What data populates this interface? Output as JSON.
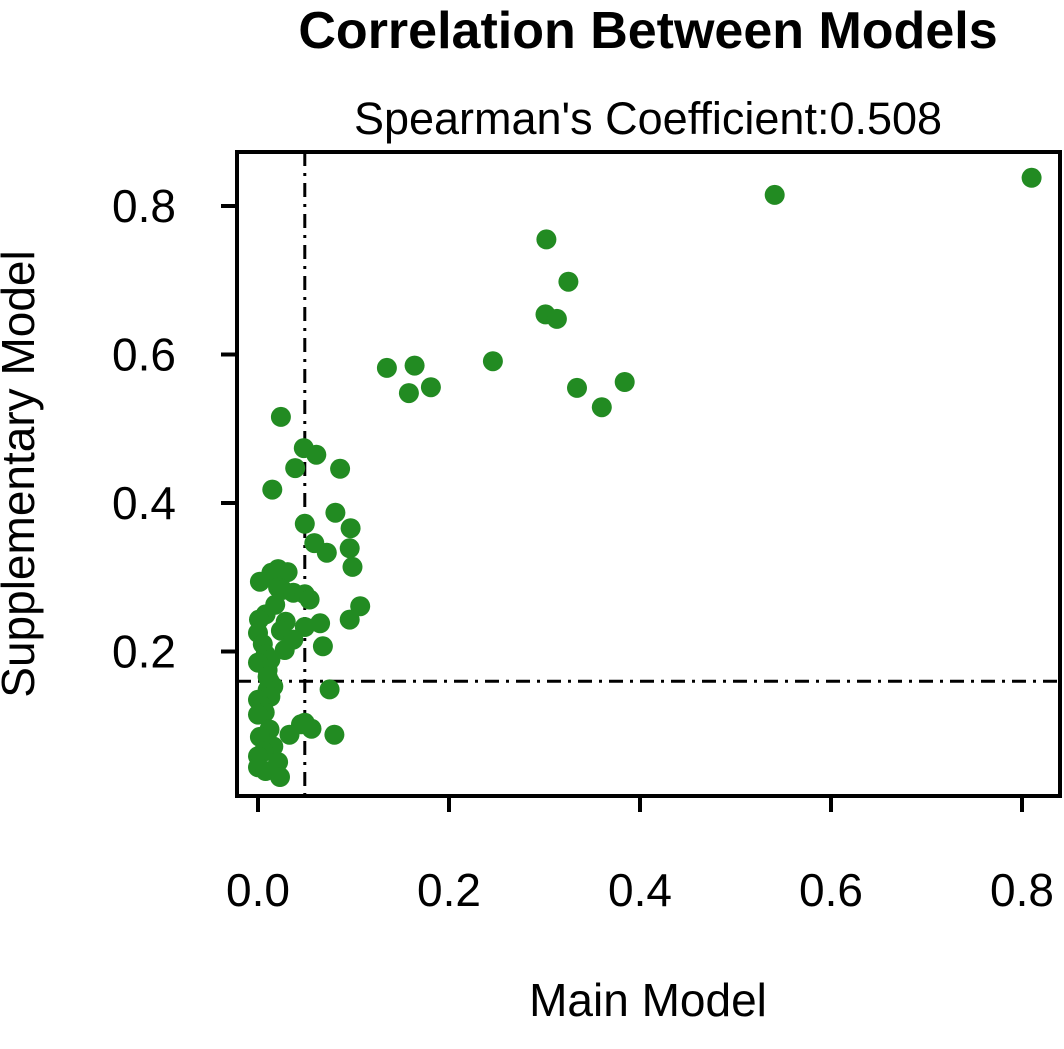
{
  "chart_data": {
    "type": "scatter",
    "title": "Correlation Between Models",
    "subtitle": "Spearman's Coefficient:0.508",
    "xlabel": "Main Model",
    "ylabel": "Supplementary Model",
    "x_ticks": [
      0.0,
      0.2,
      0.4,
      0.6,
      0.8
    ],
    "y_ticks": [
      0.2,
      0.4,
      0.6,
      0.8
    ],
    "xlim": [
      -0.023,
      0.84
    ],
    "ylim": [
      0.003,
      0.873
    ],
    "grid": false,
    "legend": "none",
    "point_color": "#228B22",
    "axis_color": "#000000",
    "reference_lines": {
      "vertical_x": 0.049,
      "horizontal_y": 0.16,
      "style": "dash-dot",
      "color": "#000000"
    },
    "points": [
      [
        0.81,
        0.838
      ],
      [
        0.541,
        0.815
      ],
      [
        0.302,
        0.755
      ],
      [
        0.325,
        0.698
      ],
      [
        0.301,
        0.654
      ],
      [
        0.313,
        0.648
      ],
      [
        0.246,
        0.591
      ],
      [
        0.164,
        0.585
      ],
      [
        0.135,
        0.582
      ],
      [
        0.181,
        0.556
      ],
      [
        0.158,
        0.548
      ],
      [
        0.334,
        0.555
      ],
      [
        0.384,
        0.563
      ],
      [
        0.36,
        0.529
      ],
      [
        0.024,
        0.516
      ],
      [
        0.048,
        0.474
      ],
      [
        0.061,
        0.465
      ],
      [
        0.039,
        0.447
      ],
      [
        0.086,
        0.446
      ],
      [
        0.015,
        0.418
      ],
      [
        0.081,
        0.387
      ],
      [
        0.049,
        0.372
      ],
      [
        0.097,
        0.366
      ],
      [
        0.059,
        0.346
      ],
      [
        0.072,
        0.333
      ],
      [
        0.096,
        0.339
      ],
      [
        0.099,
        0.314
      ],
      [
        0.021,
        0.311
      ],
      [
        0.031,
        0.307
      ],
      [
        0.014,
        0.306
      ],
      [
        0.002,
        0.294
      ],
      [
        0.021,
        0.286
      ],
      [
        0.026,
        0.283
      ],
      [
        0.037,
        0.279
      ],
      [
        0.049,
        0.277
      ],
      [
        0.054,
        0.27
      ],
      [
        0.018,
        0.263
      ],
      [
        0.107,
        0.261
      ],
      [
        0.008,
        0.25
      ],
      [
        0.001,
        0.243
      ],
      [
        0.029,
        0.24
      ],
      [
        0.065,
        0.238
      ],
      [
        0.096,
        0.243
      ],
      [
        0.0,
        0.225
      ],
      [
        0.024,
        0.228
      ],
      [
        0.049,
        0.233
      ],
      [
        0.037,
        0.216
      ],
      [
        0.068,
        0.207
      ],
      [
        0.005,
        0.21
      ],
      [
        0.028,
        0.202
      ],
      [
        0.008,
        0.196
      ],
      [
        0.013,
        0.189
      ],
      [
        0.0,
        0.185
      ],
      [
        0.01,
        0.175
      ],
      [
        0.01,
        0.166
      ],
      [
        0.016,
        0.153
      ],
      [
        0.012,
        0.16
      ],
      [
        0.075,
        0.149
      ],
      [
        0.01,
        0.148
      ],
      [
        0.013,
        0.139
      ],
      [
        0.0,
        0.135
      ],
      [
        0.005,
        0.126
      ],
      [
        0.007,
        0.118
      ],
      [
        0.0,
        0.115
      ],
      [
        0.049,
        0.104
      ],
      [
        0.045,
        0.102
      ],
      [
        0.056,
        0.096
      ],
      [
        0.012,
        0.095
      ],
      [
        0.033,
        0.088
      ],
      [
        0.08,
        0.088
      ],
      [
        0.002,
        0.085
      ],
      [
        0.016,
        0.072
      ],
      [
        0.006,
        0.065
      ],
      [
        0.0,
        0.059
      ],
      [
        0.021,
        0.051
      ],
      [
        0.0,
        0.044
      ],
      [
        0.008,
        0.039
      ],
      [
        0.023,
        0.031
      ]
    ]
  }
}
